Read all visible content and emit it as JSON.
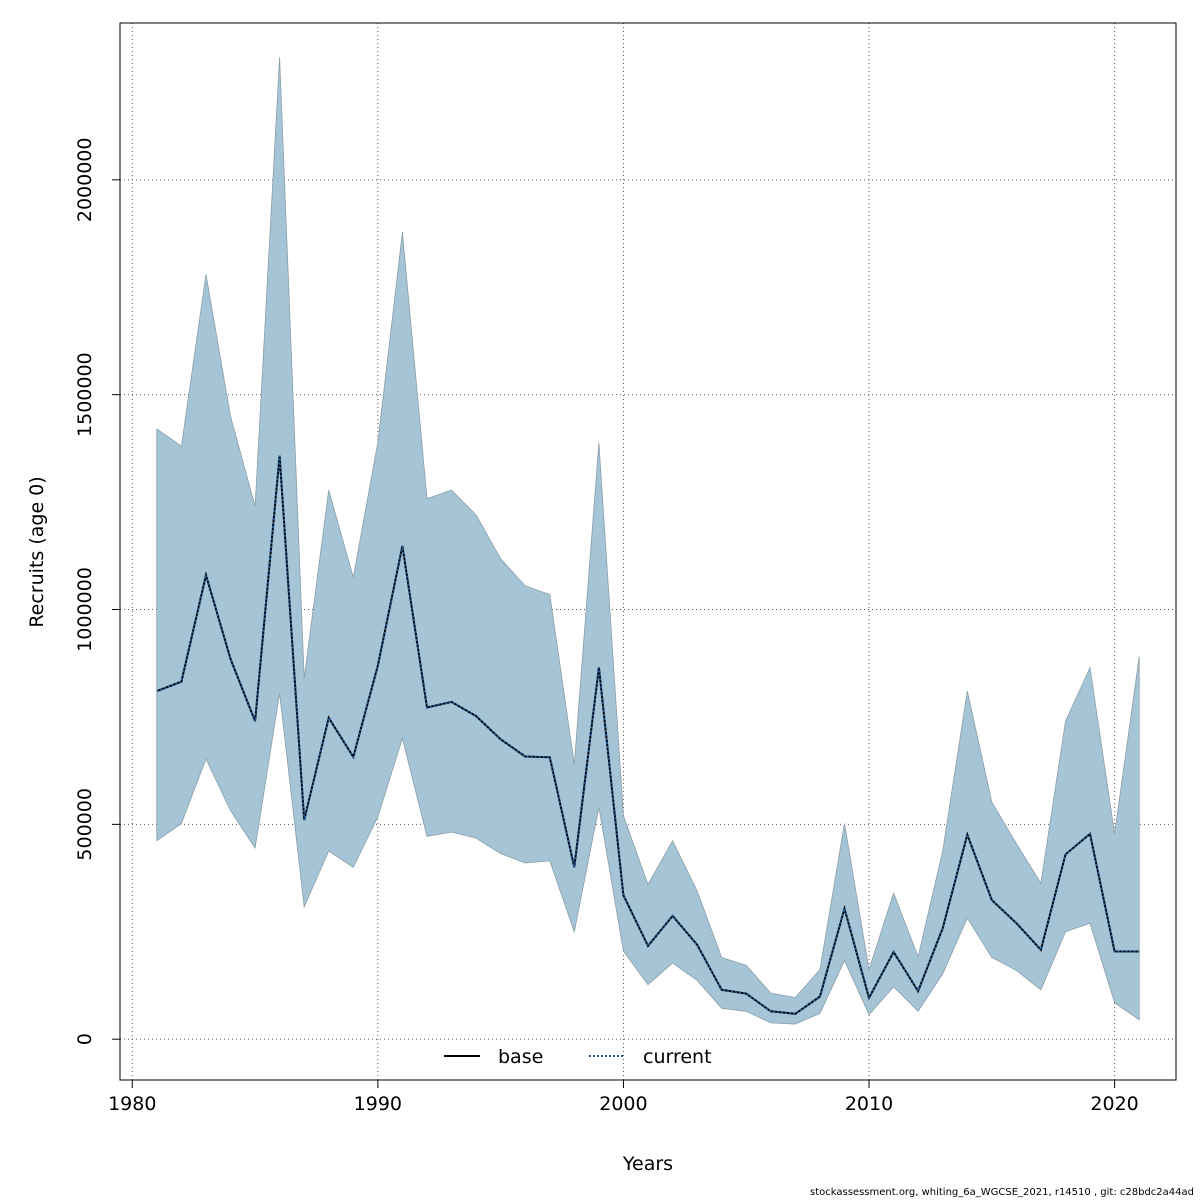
{
  "chart_data": {
    "type": "area",
    "xlabel": "Years",
    "ylabel": "Recruits (age 0)",
    "xlim": [
      1979.5,
      2022.5
    ],
    "ylim": [
      -95000,
      2365000
    ],
    "x_ticks": [
      1980,
      1990,
      2000,
      2010,
      2020
    ],
    "y_ticks": [
      0,
      500000,
      1000000,
      1500000,
      2000000
    ],
    "grid": true,
    "grid_style": "dotted",
    "legend_position": "bottom-center",
    "colors": {
      "band_fill": "#a5c5d6",
      "band_stroke": "#8a9ea8",
      "base_line": "#000000",
      "current_line": "#1e5a96",
      "grid": "#555555"
    },
    "x": [
      1981,
      1982,
      1983,
      1984,
      1985,
      1986,
      1987,
      1988,
      1989,
      1990,
      1991,
      1992,
      1993,
      1994,
      1995,
      1996,
      1997,
      1998,
      1999,
      2000,
      2001,
      2002,
      2003,
      2004,
      2005,
      2006,
      2007,
      2008,
      2009,
      2010,
      2011,
      2012,
      2013,
      2014,
      2015,
      2016,
      2017,
      2018,
      2019,
      2020,
      2021
    ],
    "series": [
      {
        "name": "base",
        "style": "solid",
        "values": [
          810000,
          832000,
          1080000,
          885000,
          740000,
          1358000,
          510000,
          748000,
          657000,
          870000,
          1148000,
          772000,
          785000,
          752000,
          698000,
          658000,
          656000,
          400000,
          865000,
          335000,
          217000,
          287000,
          220000,
          115000,
          106000,
          65000,
          59000,
          99000,
          304000,
          96000,
          203000,
          112000,
          258000,
          476000,
          324000,
          270000,
          208000,
          430000,
          478000,
          204000,
          204000
        ]
      },
      {
        "name": "current",
        "style": "dotted",
        "values": [
          810000,
          832000,
          1080000,
          885000,
          740000,
          1358000,
          510000,
          748000,
          657000,
          870000,
          1148000,
          772000,
          785000,
          752000,
          698000,
          658000,
          656000,
          400000,
          865000,
          335000,
          217000,
          287000,
          220000,
          115000,
          106000,
          65000,
          59000,
          99000,
          304000,
          96000,
          203000,
          112000,
          258000,
          476000,
          324000,
          270000,
          208000,
          430000,
          478000,
          204000,
          204000
        ]
      }
    ],
    "confidence_band": {
      "upper": [
        1420000,
        1380000,
        1780000,
        1450000,
        1240000,
        2285000,
        840000,
        1278000,
        1075000,
        1390000,
        1878000,
        1258000,
        1278000,
        1220000,
        1118000,
        1055000,
        1035000,
        640000,
        1388000,
        520000,
        360000,
        462000,
        345000,
        190000,
        172000,
        107000,
        97000,
        162000,
        502000,
        162000,
        340000,
        192000,
        438000,
        810000,
        552000,
        455000,
        363000,
        740000,
        865000,
        478000,
        890000
      ],
      "lower": [
        462000,
        502000,
        652000,
        532000,
        445000,
        805000,
        308000,
        438000,
        400000,
        518000,
        700000,
        472000,
        482000,
        468000,
        432000,
        410000,
        415000,
        250000,
        540000,
        205000,
        127000,
        177000,
        137000,
        72000,
        65000,
        38000,
        35000,
        60000,
        183000,
        57000,
        122000,
        65000,
        152000,
        282000,
        190000,
        160000,
        115000,
        250000,
        270000,
        85000,
        45000
      ]
    }
  },
  "legend": {
    "base_label": "base",
    "current_label": "current"
  },
  "footer": {
    "note": "stockassessment.org, whiting_6a_WGCSE_2021, r14510 , git: c28bdc2a44ad"
  }
}
